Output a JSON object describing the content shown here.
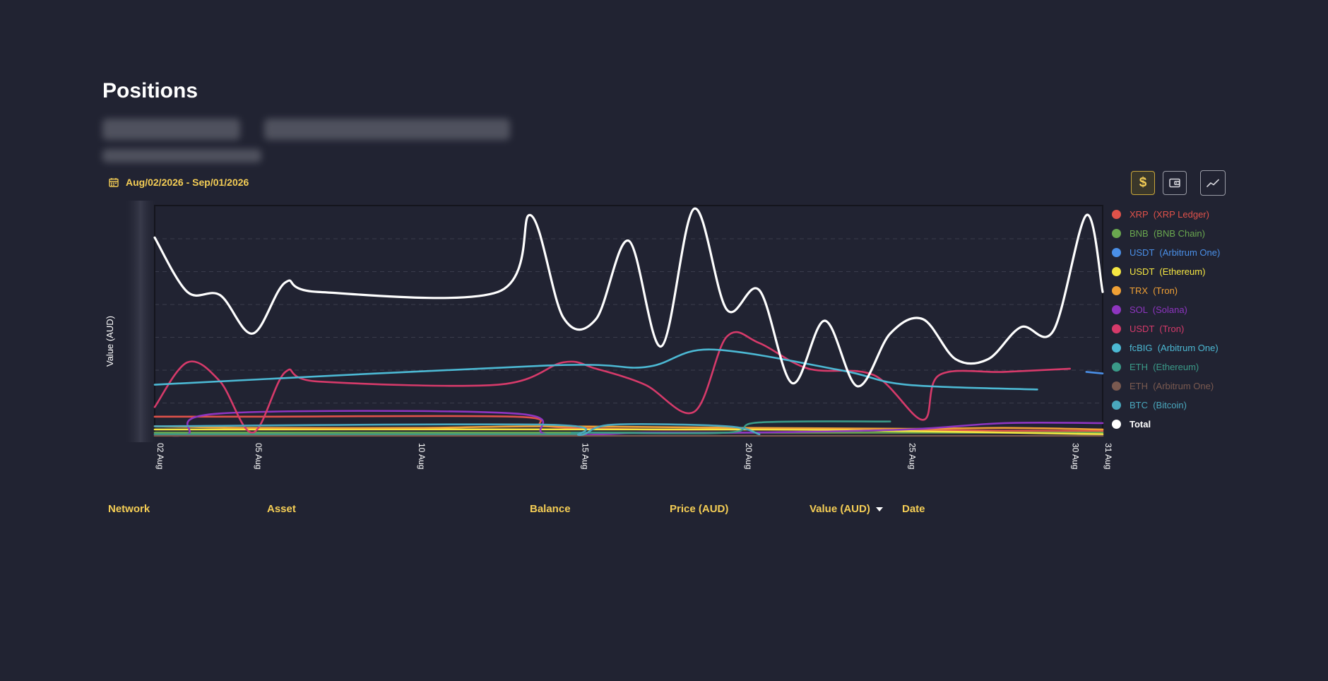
{
  "page": {
    "title": "Positions"
  },
  "date_range": {
    "label": "Aug/02/2026 - Sep/01/2026"
  },
  "toolbar": {
    "value_label": "$"
  },
  "table": {
    "columns": [
      {
        "label": "Network"
      },
      {
        "label": "Asset"
      },
      {
        "label": "Balance"
      },
      {
        "label": "Price (AUD)"
      },
      {
        "label": "Value (AUD)"
      },
      {
        "label": "Date"
      }
    ]
  },
  "chart_data": {
    "type": "line",
    "ylabel": "Value (AUD)",
    "x_ticks": [
      "02 Aug",
      "05 Aug",
      "10 Aug",
      "15 Aug",
      "20 Aug",
      "25 Aug",
      "30 Aug",
      "31 Aug"
    ],
    "legend": [
      {
        "asset": "XRP",
        "network": "(XRP Ledger)",
        "color": "#e0524a"
      },
      {
        "asset": "BNB",
        "network": "(BNB Chain)",
        "color": "#6aa84f"
      },
      {
        "asset": "USDT",
        "network": "(Arbitrum One)",
        "color": "#4a8fe7"
      },
      {
        "asset": "USDT",
        "network": "(Ethereum)",
        "color": "#f5e642"
      },
      {
        "asset": "TRX",
        "network": "(Tron)",
        "color": "#f0a035"
      },
      {
        "asset": "SOL",
        "network": "(Solana)",
        "color": "#8e35c0"
      },
      {
        "asset": "USDT",
        "network": "(Tron)",
        "color": "#d63a6a"
      },
      {
        "asset": "fcBIG",
        "network": "(Arbitrum One)",
        "color": "#4cb9d4"
      },
      {
        "asset": "ETH",
        "network": "(Ethereum)",
        "color": "#3a9a88"
      },
      {
        "asset": "ETH",
        "network": "(Arbitrum One)",
        "color": "#7a5a50"
      },
      {
        "asset": "BTC",
        "network": "(Bitcoin)",
        "color": "#4aa8be"
      },
      {
        "asset": "Total",
        "network": "",
        "color": "#ffffff"
      }
    ],
    "series": [
      {
        "name": "XRP (XRP Ledger)",
        "color": "#e0524a",
        "values": [
          [
            2,
            6
          ],
          [
            5,
            6
          ],
          [
            13,
            6
          ],
          [
            14,
            3
          ],
          [
            17,
            2
          ],
          [
            21,
            2
          ],
          [
            31,
            1.5
          ]
        ]
      },
      {
        "name": "BNB (BNB Chain)",
        "color": "#6aa84f",
        "values": [
          [
            2,
            1
          ],
          [
            31,
            1
          ]
        ]
      },
      {
        "name": "USDT (Arbitrum One)",
        "color": "#4a8fe7",
        "values": [
          [
            30.5,
            20
          ],
          [
            31,
            19.5
          ]
        ]
      },
      {
        "name": "USDT (Ethereum)",
        "color": "#f5e642",
        "values": [
          [
            2,
            2
          ],
          [
            20,
            2
          ],
          [
            25,
            1.5
          ],
          [
            31,
            0.5
          ]
        ]
      },
      {
        "name": "TRX (Tron)",
        "color": "#f0a035",
        "values": [
          [
            2,
            3
          ],
          [
            5,
            2.5
          ],
          [
            10,
            2.5
          ],
          [
            14,
            3
          ],
          [
            20,
            2.5
          ],
          [
            25,
            2.2
          ],
          [
            28,
            2.5
          ],
          [
            31,
            2
          ]
        ]
      },
      {
        "name": "SOL (Solana)",
        "color": "#8e35c0",
        "values": [
          [
            2,
            0.5
          ],
          [
            3,
            0.5
          ],
          [
            4,
            7
          ],
          [
            13,
            7
          ],
          [
            14,
            0.5
          ],
          [
            17,
            1
          ],
          [
            20,
            1
          ],
          [
            25,
            2
          ],
          [
            28,
            4
          ],
          [
            31,
            4
          ]
        ]
      },
      {
        "name": "USDT (Tron)",
        "color": "#d63a6a",
        "values": [
          [
            2,
            9
          ],
          [
            3,
            23
          ],
          [
            4,
            17
          ],
          [
            5,
            1
          ],
          [
            6,
            20
          ],
          [
            7,
            17
          ],
          [
            12.5,
            16
          ],
          [
            14.5,
            23
          ],
          [
            15.5,
            21
          ],
          [
            17,
            16
          ],
          [
            18.5,
            7.5
          ],
          [
            19.5,
            31
          ],
          [
            20.5,
            29
          ],
          [
            22,
            21
          ],
          [
            24,
            19
          ],
          [
            25.5,
            5
          ],
          [
            26,
            19
          ],
          [
            28,
            20
          ],
          [
            30,
            21
          ]
        ]
      },
      {
        "name": "fcBIG (Arbitrum One)",
        "color": "#4cb9d4",
        "values": [
          [
            2,
            16
          ],
          [
            14,
            22
          ],
          [
            17,
            21.5
          ],
          [
            19,
            27
          ],
          [
            23,
            20.5
          ],
          [
            25,
            16
          ],
          [
            29,
            14.5
          ]
        ]
      },
      {
        "name": "ETH (Ethereum)",
        "color": "#3a9a88",
        "values": [
          [
            2,
            0.5
          ],
          [
            14,
            0.5
          ],
          [
            15,
            1
          ],
          [
            19.5,
            1
          ],
          [
            20.5,
            4.2
          ],
          [
            24.5,
            4.5
          ]
        ]
      },
      {
        "name": "ETH (Arbitrum One)",
        "color": "#7a5a50",
        "values": [
          [
            2,
            0
          ],
          [
            31,
            0
          ]
        ]
      },
      {
        "name": "BTC (Bitcoin)",
        "color": "#4aa8be",
        "values": [
          [
            2,
            3
          ],
          [
            14,
            3.5
          ],
          [
            15,
            0.3
          ],
          [
            16,
            3.5
          ],
          [
            19.5,
            3
          ],
          [
            20.5,
            0.5
          ]
        ]
      },
      {
        "name": "Total",
        "color": "#ffffff",
        "values": [
          [
            2,
            62
          ],
          [
            3,
            45
          ],
          [
            4,
            44
          ],
          [
            5,
            32
          ],
          [
            6,
            48
          ],
          [
            7,
            45
          ],
          [
            12.5,
            45
          ],
          [
            13.5,
            69
          ],
          [
            14.5,
            37
          ],
          [
            15.5,
            36.5
          ],
          [
            16.5,
            61
          ],
          [
            17.5,
            28
          ],
          [
            18.5,
            71
          ],
          [
            19.5,
            39.5
          ],
          [
            20.5,
            45.5
          ],
          [
            21.5,
            16.5
          ],
          [
            22.5,
            36
          ],
          [
            23.5,
            15.5
          ],
          [
            24.5,
            32
          ],
          [
            25.5,
            36.5
          ],
          [
            26.5,
            24
          ],
          [
            27.5,
            24
          ],
          [
            28.5,
            34
          ],
          [
            29.5,
            33
          ],
          [
            30.5,
            69
          ],
          [
            31,
            45
          ]
        ]
      }
    ]
  }
}
